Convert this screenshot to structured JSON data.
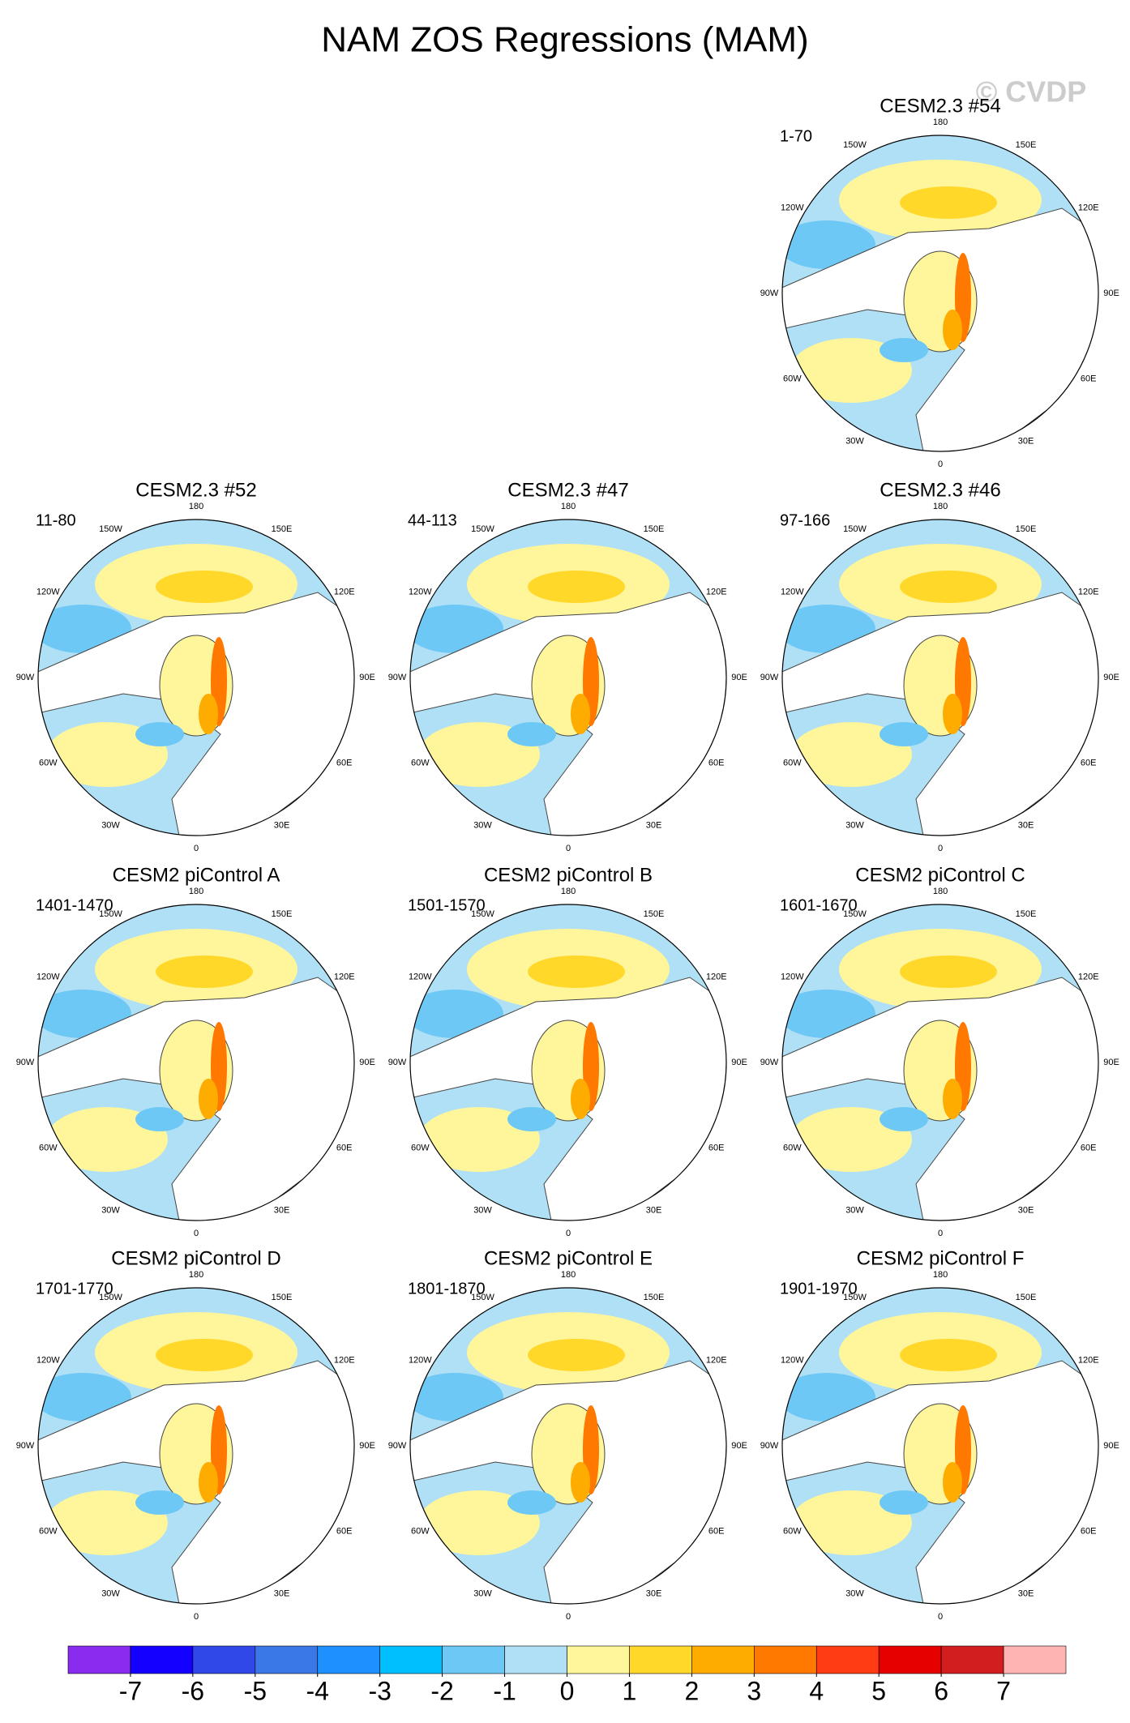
{
  "title": "NAM ZOS Regressions (MAM)",
  "watermark": "© CVDP",
  "panels": [
    {
      "title": "CESM2.3 #54",
      "period": "1-70"
    },
    {
      "title": "CESM2.3 #52",
      "period": "11-80"
    },
    {
      "title": "CESM2.3 #47",
      "period": "44-113"
    },
    {
      "title": "CESM2.3 #46",
      "period": "97-166"
    },
    {
      "title": "CESM2 piControl A",
      "period": "1401-1470"
    },
    {
      "title": "CESM2 piControl B",
      "period": "1501-1570"
    },
    {
      "title": "CESM2 piControl C",
      "period": "1601-1670"
    },
    {
      "title": "CESM2 piControl D",
      "period": "1701-1770"
    },
    {
      "title": "CESM2 piControl E",
      "period": "1801-1870"
    },
    {
      "title": "CESM2 piControl F",
      "period": "1901-1970"
    }
  ],
  "lon_labels": [
    "180",
    "150E",
    "120E",
    "90E",
    "60E",
    "30E",
    "0",
    "30W",
    "60W",
    "90W",
    "120W",
    "150W"
  ],
  "colorbar": {
    "colors": [
      "#8a2bf0",
      "#1400ff",
      "#3048e8",
      "#3a78e8",
      "#1e90ff",
      "#00bfff",
      "#6ec8f5",
      "#b0e0f5",
      "#fff59a",
      "#ffd82a",
      "#ffac00",
      "#ff7800",
      "#ff3c14",
      "#e60000",
      "#d21e1e",
      "#ffb4b4"
    ],
    "ticks": [
      -7,
      -6,
      -5,
      -4,
      -3,
      -2,
      -1,
      0,
      1,
      2,
      3,
      4,
      5,
      6,
      7
    ]
  }
}
